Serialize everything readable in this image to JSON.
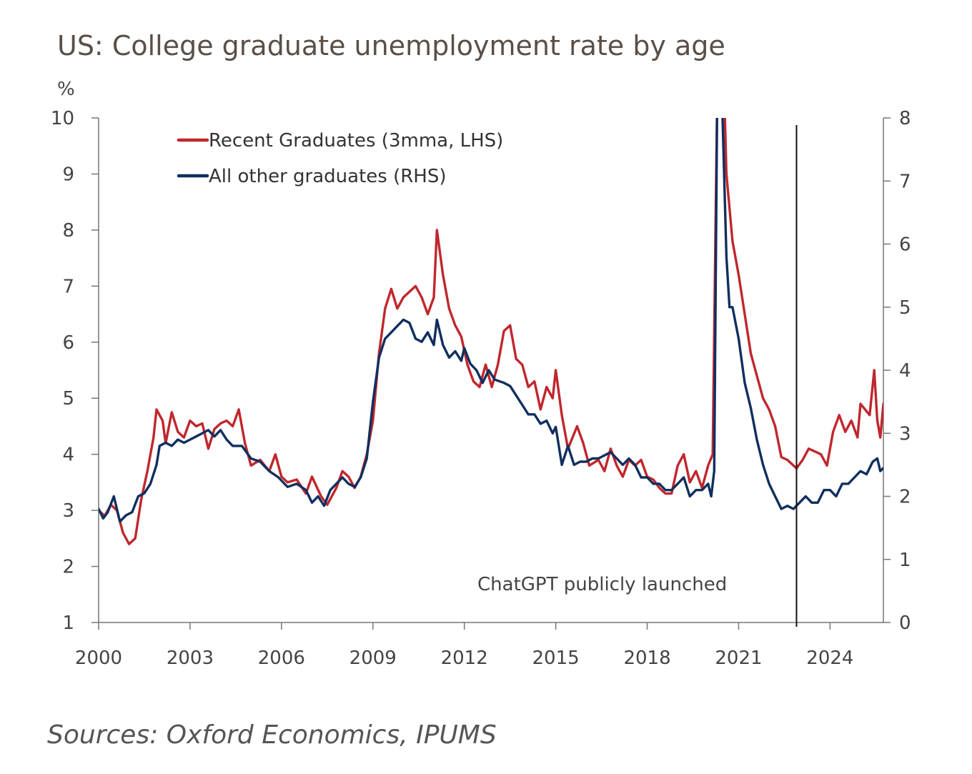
{
  "title": "US: College graduate unemployment rate by age",
  "source": "Sources: Oxford Economics, IPUMS",
  "chart_data": {
    "type": "line",
    "title": "US: College graduate unemployment rate by age",
    "ylabel": "%",
    "xlabel": "",
    "xlim": [
      2000,
      2025.75
    ],
    "ylim_left": [
      1,
      10
    ],
    "ylim_right": [
      0,
      8
    ],
    "x_ticks": [
      "2000",
      "2003",
      "2006",
      "2009",
      "2012",
      "2015",
      "2018",
      "2021",
      "2024"
    ],
    "y_ticks_left": [
      "1",
      "2",
      "3",
      "4",
      "5",
      "6",
      "7",
      "8",
      "9",
      "10"
    ],
    "y_ticks_right": [
      "0",
      "1",
      "2",
      "3",
      "4",
      "5",
      "6",
      "7",
      "8"
    ],
    "grid": false,
    "legend_position": "top-left",
    "annotations": [
      {
        "text": "ChatGPT  publicly launched",
        "x": 2022.9
      }
    ],
    "series": [
      {
        "name": "Recent Graduates (3mma, LHS)",
        "axis": "left",
        "color": "#c0272d",
        "points": [
          [
            2000.0,
            3.0
          ],
          [
            2000.2,
            2.9
          ],
          [
            2000.4,
            3.1
          ],
          [
            2000.6,
            3.0
          ],
          [
            2000.8,
            2.6
          ],
          [
            2001.0,
            2.4
          ],
          [
            2001.2,
            2.5
          ],
          [
            2001.4,
            3.2
          ],
          [
            2001.6,
            3.7
          ],
          [
            2001.8,
            4.3
          ],
          [
            2001.9,
            4.8
          ],
          [
            2002.1,
            4.6
          ],
          [
            2002.2,
            4.2
          ],
          [
            2002.4,
            4.75
          ],
          [
            2002.6,
            4.4
          ],
          [
            2002.8,
            4.3
          ],
          [
            2003.0,
            4.6
          ],
          [
            2003.2,
            4.5
          ],
          [
            2003.4,
            4.55
          ],
          [
            2003.6,
            4.1
          ],
          [
            2003.8,
            4.45
          ],
          [
            2004.0,
            4.55
          ],
          [
            2004.2,
            4.6
          ],
          [
            2004.4,
            4.5
          ],
          [
            2004.6,
            4.8
          ],
          [
            2004.8,
            4.2
          ],
          [
            2005.0,
            3.8
          ],
          [
            2005.3,
            3.9
          ],
          [
            2005.6,
            3.7
          ],
          [
            2005.8,
            4.0
          ],
          [
            2006.0,
            3.6
          ],
          [
            2006.2,
            3.5
          ],
          [
            2006.5,
            3.55
          ],
          [
            2006.8,
            3.3
          ],
          [
            2007.0,
            3.6
          ],
          [
            2007.3,
            3.25
          ],
          [
            2007.5,
            3.1
          ],
          [
            2007.8,
            3.4
          ],
          [
            2008.0,
            3.7
          ],
          [
            2008.2,
            3.6
          ],
          [
            2008.4,
            3.4
          ],
          [
            2008.6,
            3.6
          ],
          [
            2008.8,
            4.0
          ],
          [
            2009.0,
            4.6
          ],
          [
            2009.2,
            5.8
          ],
          [
            2009.4,
            6.6
          ],
          [
            2009.6,
            6.95
          ],
          [
            2009.8,
            6.6
          ],
          [
            2010.0,
            6.8
          ],
          [
            2010.2,
            6.9
          ],
          [
            2010.4,
            7.0
          ],
          [
            2010.6,
            6.8
          ],
          [
            2010.8,
            6.5
          ],
          [
            2011.0,
            6.8
          ],
          [
            2011.1,
            8.0
          ],
          [
            2011.3,
            7.2
          ],
          [
            2011.5,
            6.6
          ],
          [
            2011.7,
            6.3
          ],
          [
            2011.9,
            6.1
          ],
          [
            2012.1,
            5.6
          ],
          [
            2012.3,
            5.3
          ],
          [
            2012.5,
            5.2
          ],
          [
            2012.7,
            5.6
          ],
          [
            2012.9,
            5.2
          ],
          [
            2013.1,
            5.6
          ],
          [
            2013.3,
            6.2
          ],
          [
            2013.5,
            6.3
          ],
          [
            2013.7,
            5.7
          ],
          [
            2013.9,
            5.6
          ],
          [
            2014.1,
            5.2
          ],
          [
            2014.3,
            5.3
          ],
          [
            2014.5,
            4.8
          ],
          [
            2014.7,
            5.2
          ],
          [
            2014.9,
            5.0
          ],
          [
            2015.0,
            5.5
          ],
          [
            2015.2,
            4.7
          ],
          [
            2015.4,
            4.1
          ],
          [
            2015.7,
            4.5
          ],
          [
            2015.9,
            4.2
          ],
          [
            2016.1,
            3.8
          ],
          [
            2016.4,
            3.9
          ],
          [
            2016.6,
            3.7
          ],
          [
            2016.8,
            4.1
          ],
          [
            2017.0,
            3.8
          ],
          [
            2017.2,
            3.6
          ],
          [
            2017.4,
            3.9
          ],
          [
            2017.6,
            3.8
          ],
          [
            2017.8,
            3.9
          ],
          [
            2018.0,
            3.6
          ],
          [
            2018.2,
            3.55
          ],
          [
            2018.4,
            3.4
          ],
          [
            2018.6,
            3.3
          ],
          [
            2018.8,
            3.3
          ],
          [
            2019.0,
            3.8
          ],
          [
            2019.2,
            4.0
          ],
          [
            2019.4,
            3.5
          ],
          [
            2019.6,
            3.7
          ],
          [
            2019.8,
            3.4
          ],
          [
            2020.0,
            3.8
          ],
          [
            2020.15,
            4.0
          ],
          [
            2020.3,
            10.5
          ],
          [
            2020.5,
            11.0
          ],
          [
            2020.6,
            9.0
          ],
          [
            2020.8,
            7.8
          ],
          [
            2021.0,
            7.2
          ],
          [
            2021.2,
            6.5
          ],
          [
            2021.4,
            5.8
          ],
          [
            2021.6,
            5.4
          ],
          [
            2021.8,
            5.0
          ],
          [
            2022.0,
            4.8
          ],
          [
            2022.2,
            4.5
          ],
          [
            2022.4,
            3.95
          ],
          [
            2022.6,
            3.9
          ],
          [
            2022.8,
            3.8
          ],
          [
            2022.9,
            3.75
          ],
          [
            2023.1,
            3.9
          ],
          [
            2023.3,
            4.1
          ],
          [
            2023.5,
            4.05
          ],
          [
            2023.7,
            4.0
          ],
          [
            2023.9,
            3.8
          ],
          [
            2024.1,
            4.4
          ],
          [
            2024.3,
            4.7
          ],
          [
            2024.5,
            4.4
          ],
          [
            2024.7,
            4.6
          ],
          [
            2024.9,
            4.3
          ],
          [
            2025.0,
            4.9
          ],
          [
            2025.15,
            4.8
          ],
          [
            2025.3,
            4.7
          ],
          [
            2025.45,
            5.5
          ],
          [
            2025.55,
            4.6
          ],
          [
            2025.65,
            4.3
          ],
          [
            2025.75,
            4.9
          ]
        ]
      },
      {
        "name": "All other graduates (RHS)",
        "axis": "right",
        "color": "#102f5e",
        "points": [
          [
            2000.0,
            1.8
          ],
          [
            2000.15,
            1.65
          ],
          [
            2000.3,
            1.75
          ],
          [
            2000.5,
            2.0
          ],
          [
            2000.7,
            1.6
          ],
          [
            2000.9,
            1.7
          ],
          [
            2001.1,
            1.75
          ],
          [
            2001.3,
            2.0
          ],
          [
            2001.5,
            2.05
          ],
          [
            2001.7,
            2.2
          ],
          [
            2001.9,
            2.5
          ],
          [
            2002.0,
            2.8
          ],
          [
            2002.2,
            2.85
          ],
          [
            2002.4,
            2.8
          ],
          [
            2002.6,
            2.9
          ],
          [
            2002.8,
            2.85
          ],
          [
            2003.0,
            2.9
          ],
          [
            2003.2,
            2.95
          ],
          [
            2003.4,
            3.0
          ],
          [
            2003.6,
            3.05
          ],
          [
            2003.8,
            2.95
          ],
          [
            2004.0,
            3.05
          ],
          [
            2004.2,
            2.9
          ],
          [
            2004.4,
            2.8
          ],
          [
            2004.7,
            2.8
          ],
          [
            2005.0,
            2.6
          ],
          [
            2005.3,
            2.55
          ],
          [
            2005.6,
            2.4
          ],
          [
            2005.9,
            2.3
          ],
          [
            2006.2,
            2.15
          ],
          [
            2006.5,
            2.2
          ],
          [
            2006.8,
            2.1
          ],
          [
            2007.0,
            1.9
          ],
          [
            2007.2,
            2.0
          ],
          [
            2007.4,
            1.85
          ],
          [
            2007.6,
            2.1
          ],
          [
            2007.8,
            2.2
          ],
          [
            2008.0,
            2.3
          ],
          [
            2008.2,
            2.2
          ],
          [
            2008.4,
            2.15
          ],
          [
            2008.6,
            2.3
          ],
          [
            2008.8,
            2.6
          ],
          [
            2009.0,
            3.5
          ],
          [
            2009.2,
            4.2
          ],
          [
            2009.4,
            4.5
          ],
          [
            2009.6,
            4.6
          ],
          [
            2009.8,
            4.7
          ],
          [
            2010.0,
            4.8
          ],
          [
            2010.2,
            4.75
          ],
          [
            2010.4,
            4.5
          ],
          [
            2010.6,
            4.45
          ],
          [
            2010.8,
            4.6
          ],
          [
            2011.0,
            4.4
          ],
          [
            2011.1,
            4.8
          ],
          [
            2011.3,
            4.4
          ],
          [
            2011.5,
            4.2
          ],
          [
            2011.7,
            4.3
          ],
          [
            2011.9,
            4.15
          ],
          [
            2012.0,
            4.35
          ],
          [
            2012.2,
            4.1
          ],
          [
            2012.4,
            4.0
          ],
          [
            2012.6,
            3.8
          ],
          [
            2012.8,
            4.0
          ],
          [
            2013.0,
            3.85
          ],
          [
            2013.3,
            3.8
          ],
          [
            2013.5,
            3.75
          ],
          [
            2013.7,
            3.6
          ],
          [
            2013.9,
            3.45
          ],
          [
            2014.1,
            3.3
          ],
          [
            2014.3,
            3.3
          ],
          [
            2014.5,
            3.15
          ],
          [
            2014.7,
            3.2
          ],
          [
            2014.9,
            3.0
          ],
          [
            2015.0,
            3.1
          ],
          [
            2015.2,
            2.5
          ],
          [
            2015.4,
            2.8
          ],
          [
            2015.6,
            2.5
          ],
          [
            2015.8,
            2.55
          ],
          [
            2016.0,
            2.55
          ],
          [
            2016.2,
            2.6
          ],
          [
            2016.4,
            2.6
          ],
          [
            2016.6,
            2.65
          ],
          [
            2016.8,
            2.7
          ],
          [
            2017.0,
            2.6
          ],
          [
            2017.2,
            2.5
          ],
          [
            2017.4,
            2.6
          ],
          [
            2017.6,
            2.5
          ],
          [
            2017.8,
            2.3
          ],
          [
            2018.0,
            2.3
          ],
          [
            2018.2,
            2.2
          ],
          [
            2018.4,
            2.2
          ],
          [
            2018.6,
            2.1
          ],
          [
            2018.8,
            2.1
          ],
          [
            2019.0,
            2.2
          ],
          [
            2019.2,
            2.3
          ],
          [
            2019.4,
            2.0
          ],
          [
            2019.6,
            2.1
          ],
          [
            2019.8,
            2.1
          ],
          [
            2020.0,
            2.2
          ],
          [
            2020.1,
            2.0
          ],
          [
            2020.2,
            2.4
          ],
          [
            2020.3,
            8.5
          ],
          [
            2020.45,
            8.4
          ],
          [
            2020.6,
            5.8
          ],
          [
            2020.7,
            5.0
          ],
          [
            2020.8,
            5.0
          ],
          [
            2021.0,
            4.5
          ],
          [
            2021.2,
            3.8
          ],
          [
            2021.4,
            3.4
          ],
          [
            2021.6,
            2.9
          ],
          [
            2021.8,
            2.5
          ],
          [
            2022.0,
            2.2
          ],
          [
            2022.2,
            2.0
          ],
          [
            2022.4,
            1.8
          ],
          [
            2022.6,
            1.85
          ],
          [
            2022.8,
            1.8
          ],
          [
            2023.0,
            1.9
          ],
          [
            2023.2,
            2.0
          ],
          [
            2023.4,
            1.9
          ],
          [
            2023.6,
            1.9
          ],
          [
            2023.8,
            2.1
          ],
          [
            2024.0,
            2.1
          ],
          [
            2024.2,
            2.0
          ],
          [
            2024.4,
            2.2
          ],
          [
            2024.6,
            2.2
          ],
          [
            2024.8,
            2.3
          ],
          [
            2025.0,
            2.4
          ],
          [
            2025.2,
            2.35
          ],
          [
            2025.4,
            2.55
          ],
          [
            2025.55,
            2.6
          ],
          [
            2025.65,
            2.4
          ],
          [
            2025.75,
            2.45
          ]
        ]
      }
    ]
  }
}
